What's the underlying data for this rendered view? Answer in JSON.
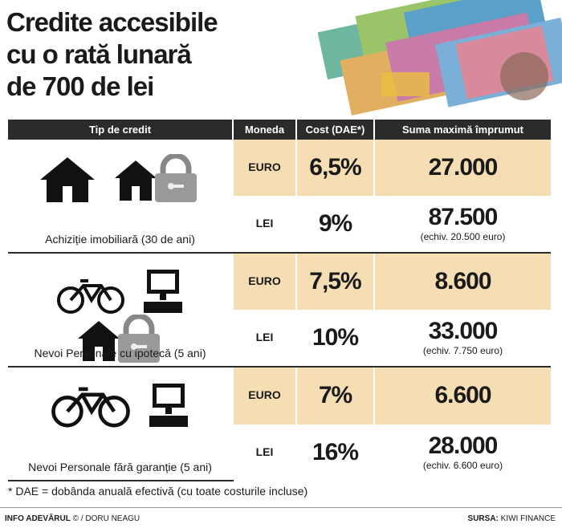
{
  "title": [
    "Credite accesibile",
    "cu o rată lunară",
    "de 700 de lei"
  ],
  "headers": {
    "type": "Tip de credit",
    "currency": "Moneda",
    "cost": "Cost (DAE*)",
    "sum": "Suma maximă împrumut"
  },
  "groups": [
    {
      "caption": "Achiziție imobiliară (30 de ani)",
      "icons": [
        "house-icon",
        "house-lock-icon"
      ],
      "rows": [
        {
          "currency": "EURO",
          "cost": "6,5%",
          "sum": "27.000",
          "sub": ""
        },
        {
          "currency": "LEI",
          "cost": "9%",
          "sum": "87.500",
          "sub": "(echiv. 20.500 euro)"
        }
      ]
    },
    {
      "caption": "Nevoi Personale cu ipotecă (5 ani)",
      "icons": [
        "bicycle-icon",
        "computer-icon",
        "house-lock-icon"
      ],
      "rows": [
        {
          "currency": "EURO",
          "cost": "7,5%",
          "sum": "8.600",
          "sub": ""
        },
        {
          "currency": "LEI",
          "cost": "10%",
          "sum": "33.000",
          "sub": "(echiv. 7.750 euro)"
        }
      ]
    },
    {
      "caption": "Nevoi Personale fără garanție (5 ani)",
      "icons": [
        "bicycle-icon",
        "computer-icon"
      ],
      "rows": [
        {
          "currency": "EURO",
          "cost": "7%",
          "sum": "6.600",
          "sub": ""
        },
        {
          "currency": "LEI",
          "cost": "16%",
          "sum": "28.000",
          "sub": "(echiv. 6.600 euro)"
        }
      ]
    }
  ],
  "footnote": "* DAE = dobânda anuală efectivă (cu toate costurile incluse)",
  "footer": {
    "left_bold": "INFO ADEVĂRUL",
    "left_rest": "© / DORU NEAGU",
    "right_bold": "SURSA:",
    "right_rest": "KIWI FINANCE"
  },
  "colors": {
    "header_bg": "#2b2b2b",
    "highlight": "#f5deb3"
  }
}
